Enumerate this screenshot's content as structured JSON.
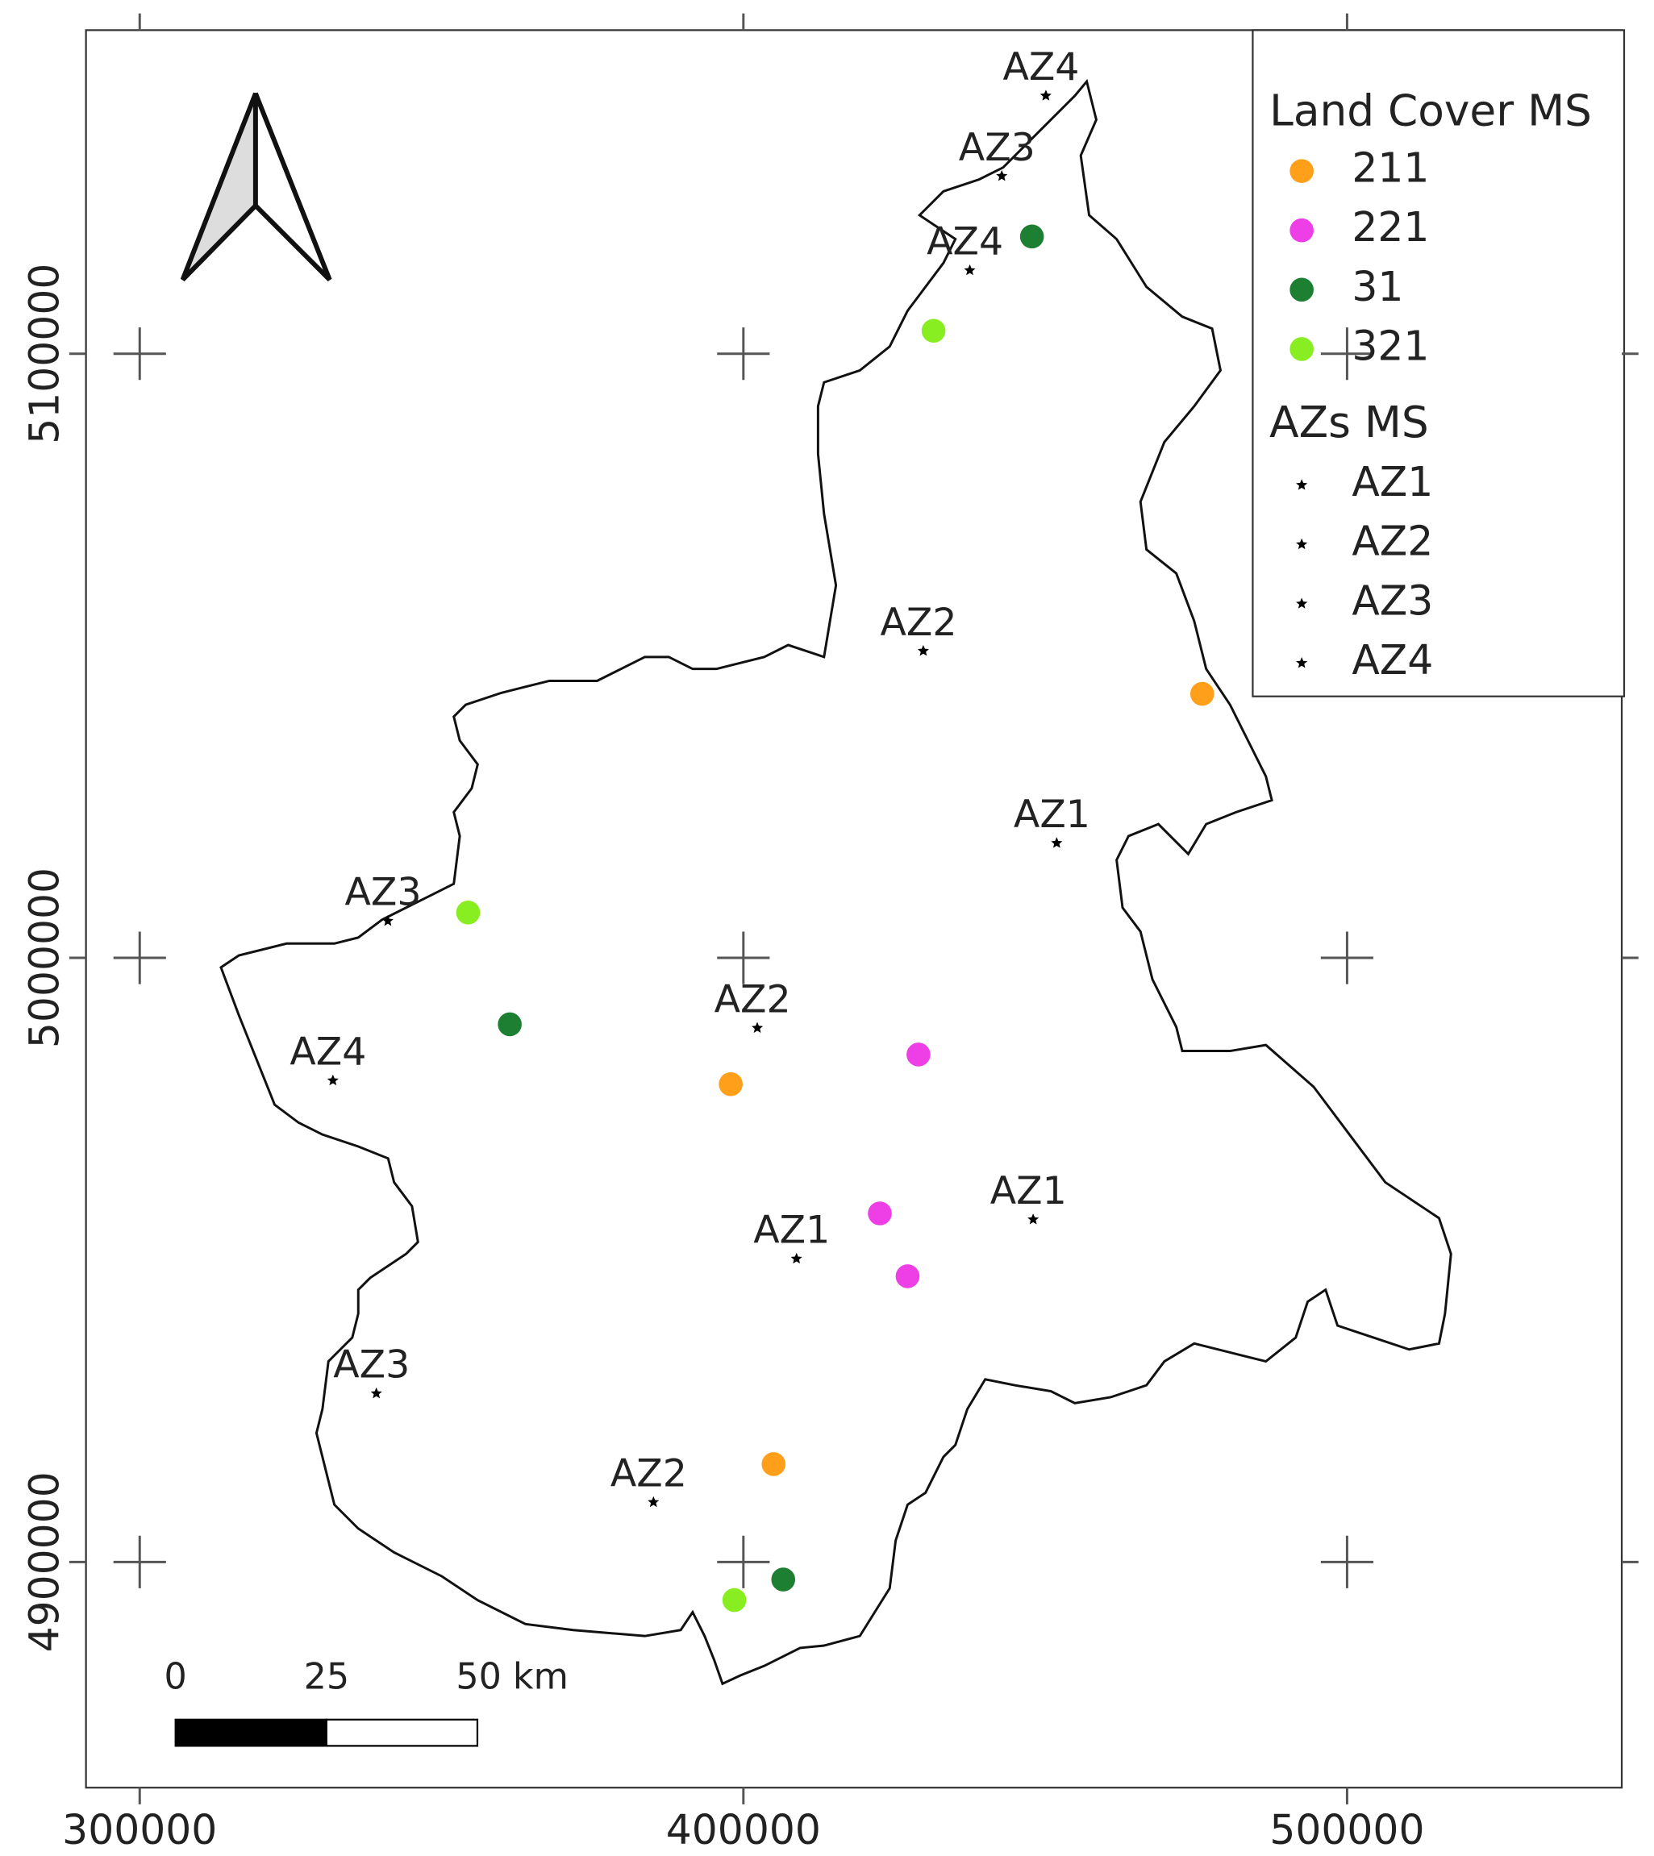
{
  "chart_data": {
    "type": "map",
    "xlim": [
      291100,
      545500
    ],
    "ylim": [
      4862650,
      5153560
    ],
    "xticks": [
      300000,
      400000,
      500000
    ],
    "yticks": [
      4900000,
      5000000,
      5100000
    ],
    "legend_title": "Land Cover MS",
    "series": [
      {
        "name": "211",
        "color": "#ff9f1a",
        "x": [
          476000,
          397900,
          405000
        ],
        "y": [
          5043700,
          4979100,
          4916200
        ]
      },
      {
        "name": "221",
        "color": "#ee3fe6",
        "x": [
          429000,
          422600,
          427200
        ],
        "y": [
          4984000,
          4957700,
          4947300
        ]
      },
      {
        "name": "31",
        "color": "#1d7f32",
        "x": [
          447800,
          361300,
          406600
        ],
        "y": [
          5119400,
          4989000,
          4897100
        ]
      },
      {
        "name": "321",
        "color": "#88ee22",
        "x": [
          431500,
          354400,
          398500
        ],
        "y": [
          5103800,
          5007500,
          4893700
        ]
      }
    ],
    "azs": {
      "legend_title": "AZs MS",
      "color": "#000000",
      "series": [
        {
          "name": "AZ1",
          "x": [
            451900,
            448000,
            408800
          ],
          "y": [
            5019000,
            4956700,
            4950200
          ]
        },
        {
          "name": "AZ2",
          "x": [
            429800,
            402300,
            385100
          ],
          "y": [
            5050800,
            4988400,
            4909900
          ]
        },
        {
          "name": "AZ3",
          "x": [
            442800,
            341100,
            339200
          ],
          "y": [
            5129400,
            5006100,
            4927900
          ]
        },
        {
          "name": "AZ4",
          "x": [
            450100,
            437500,
            332000
          ],
          "y": [
            5142700,
            5113800,
            4979700
          ]
        }
      ]
    },
    "scalebar": {
      "ticks": [
        0,
        25,
        {
          "value": 50,
          "label": "50 km"
        }
      ]
    }
  }
}
